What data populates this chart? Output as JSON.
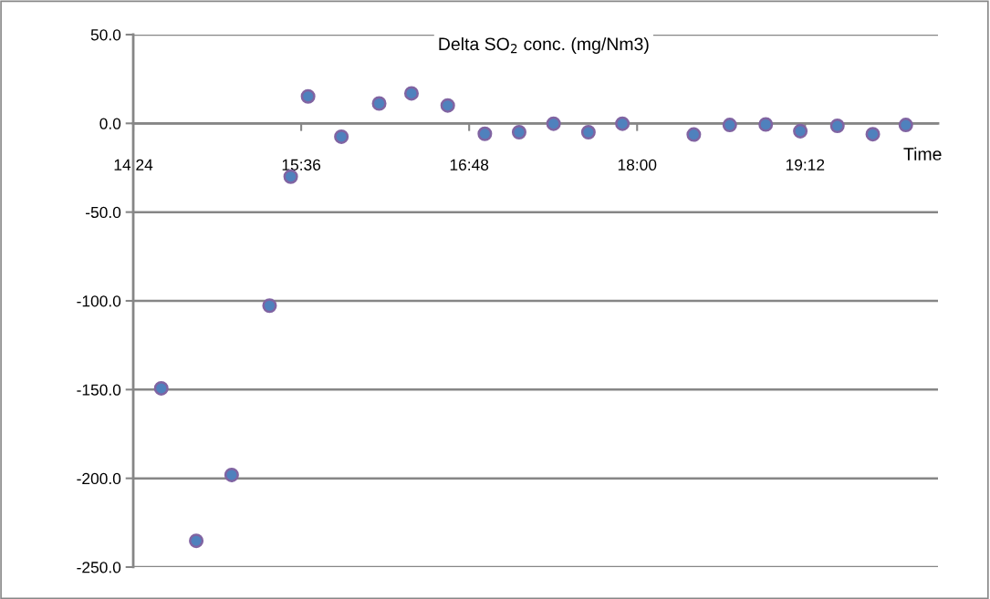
{
  "chart_data": {
    "type": "scatter",
    "title": "Delta SO$_{2}$ conc. (mg/Nm3)",
    "xlabel": "Time",
    "x": [
      14.6,
      14.85,
      15.103,
      15.374,
      15.525,
      15.649,
      15.887,
      16.157,
      16.388,
      16.647,
      16.912,
      17.157,
      17.403,
      17.652,
      17.895,
      18.405,
      18.662,
      18.919,
      19.166,
      19.431,
      19.684,
      19.92
    ],
    "series": [
      {
        "color": "#4f81bd",
        "values": [
          -149.3,
          -235.2,
          -198.1,
          -102.7,
          -30.0,
          15.2,
          -7.5,
          11.2,
          16.9,
          10.1,
          -5.9,
          -5.0,
          -0.2,
          -5.0,
          -0.2,
          -6.3,
          -0.9,
          -0.6,
          -4.4,
          -1.4,
          -6.1,
          -0.9
        ]
      }
    ],
    "xlim": [
      14.4,
      20.15
    ],
    "xticks": [
      {
        "value": 14.4,
        "label": "14:24"
      },
      {
        "value": 15.6,
        "label": "15:36"
      },
      {
        "value": 16.8,
        "label": "16:48"
      },
      {
        "value": 18.0,
        "label": "18:00"
      },
      {
        "value": 19.2,
        "label": "19:12"
      }
    ],
    "ylim": [
      -250,
      50
    ],
    "yticks": [
      {
        "value": -250,
        "label": "-250.0"
      },
      {
        "value": -200,
        "label": "-200.0"
      },
      {
        "value": -150,
        "label": "-150.0"
      },
      {
        "value": -100,
        "label": "-100.0"
      },
      {
        "value": -50,
        "label": "-50.0"
      },
      {
        "value": 0,
        "label": "0.0"
      },
      {
        "value": 50,
        "label": "50.0"
      }
    ],
    "grid": "y",
    "marker": "circle"
  }
}
